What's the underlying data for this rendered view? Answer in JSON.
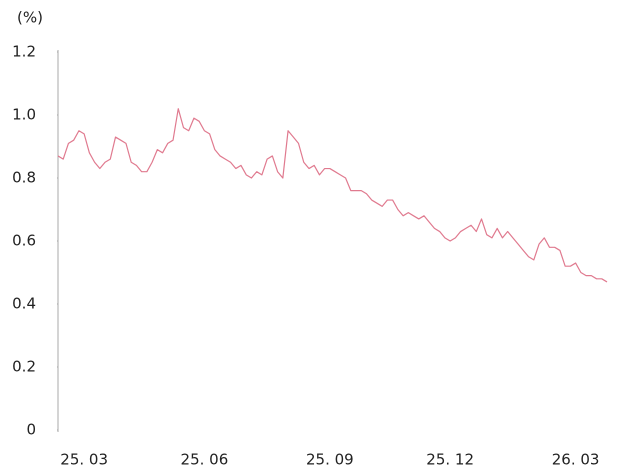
{
  "chart_data": {
    "type": "line",
    "y_label": "(%)",
    "categories": [
      null,
      null,
      null,
      null,
      null,
      "25. 03",
      null,
      null,
      null,
      null,
      null,
      null,
      null,
      null,
      null,
      null,
      null,
      null,
      null,
      null,
      null,
      null,
      null,
      null,
      null,
      null,
      null,
      null,
      "25. 06",
      null,
      null,
      null,
      null,
      null,
      null,
      null,
      null,
      null,
      null,
      null,
      null,
      null,
      null,
      null,
      null,
      null,
      null,
      null,
      null,
      null,
      null,
      null,
      "25. 09",
      null,
      null,
      null,
      null,
      null,
      null,
      null,
      null,
      null,
      null,
      null,
      null,
      null,
      null,
      null,
      null,
      null,
      null,
      null,
      null,
      null,
      null,
      "25. 12",
      null,
      null,
      null,
      null,
      null,
      null,
      null,
      null,
      null,
      null,
      null,
      null,
      null,
      null,
      null,
      null,
      null,
      null,
      null,
      null,
      null,
      null,
      null,
      "26. 03",
      null,
      null,
      null,
      null,
      null,
      null
    ],
    "values": [
      0.87,
      0.86,
      0.91,
      0.92,
      0.95,
      0.94,
      0.88,
      0.85,
      0.83,
      0.85,
      0.86,
      0.93,
      0.92,
      0.91,
      0.85,
      0.84,
      0.82,
      0.82,
      0.85,
      0.89,
      0.88,
      0.91,
      0.92,
      1.02,
      0.96,
      0.95,
      0.99,
      0.98,
      0.95,
      0.94,
      0.89,
      0.87,
      0.86,
      0.85,
      0.83,
      0.84,
      0.81,
      0.8,
      0.82,
      0.81,
      0.86,
      0.87,
      0.82,
      0.8,
      0.95,
      0.93,
      0.91,
      0.85,
      0.83,
      0.84,
      0.81,
      0.83,
      0.83,
      0.82,
      0.81,
      0.8,
      0.76,
      0.76,
      0.76,
      0.75,
      0.73,
      0.72,
      0.71,
      0.73,
      0.73,
      0.7,
      0.68,
      0.69,
      0.68,
      0.67,
      0.68,
      0.66,
      0.64,
      0.63,
      0.61,
      0.6,
      0.61,
      0.63,
      0.64,
      0.65,
      0.63,
      0.67,
      0.62,
      0.61,
      0.64,
      0.61,
      0.63,
      0.61,
      0.59,
      0.57,
      0.55,
      0.54,
      0.59,
      0.61,
      0.58,
      0.58,
      0.57,
      0.52,
      0.52,
      0.53,
      0.5,
      0.49,
      0.49,
      0.48,
      0.48,
      0.47
    ],
    "color": "#e07a8f",
    "ylim": [
      0,
      1.2
    ],
    "yticks": [
      0,
      0.2,
      0.4,
      0.6,
      0.8,
      {
        "value": 1,
        "label": "1.0"
      },
      1.2
    ],
    "grid": false
  }
}
